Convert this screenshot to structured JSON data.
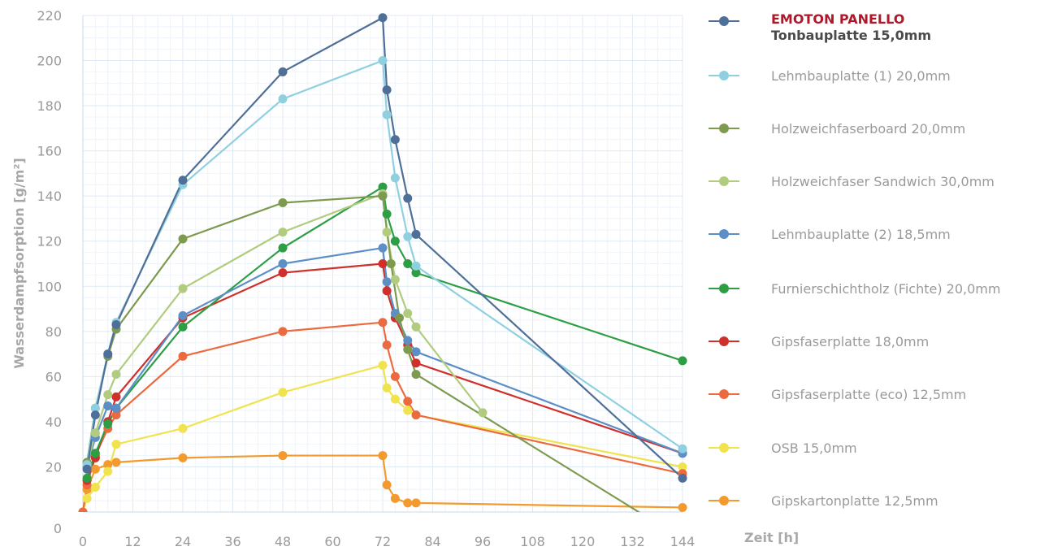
{
  "chart_data": {
    "type": "line",
    "ylabel": "Wasserdampfsorption [g/m²]",
    "xlabel": "Zeit [h]",
    "xlim": [
      0,
      144
    ],
    "ylim": [
      0,
      220
    ],
    "xticks": [
      "0",
      "12",
      "24",
      "36",
      "48",
      "60",
      "72",
      "84",
      "96",
      "108",
      "120",
      "132",
      "144"
    ],
    "yticks": [
      "0",
      "20",
      "40",
      "60",
      "80",
      "100",
      "120",
      "140",
      "160",
      "180",
      "200",
      "220"
    ],
    "grid": true,
    "legend_position": "right",
    "series": [
      {
        "name": "EMOTON PANELLO",
        "subtitle": "Tonbauplatte 15,0mm",
        "color": "#4f6f98",
        "points": [
          [
            1,
            19
          ],
          [
            3,
            43
          ],
          [
            6,
            70
          ],
          [
            8,
            83
          ],
          [
            24,
            147
          ],
          [
            48,
            195
          ],
          [
            72,
            219
          ],
          [
            73,
            187
          ],
          [
            75,
            165
          ],
          [
            78,
            139
          ],
          [
            80,
            123
          ],
          [
            144,
            15
          ]
        ]
      },
      {
        "name": "Lehmbauplatte (1) 20,0mm",
        "color": "#8fd0e0",
        "points": [
          [
            1,
            21
          ],
          [
            3,
            46
          ],
          [
            6,
            70
          ],
          [
            8,
            84
          ],
          [
            24,
            145
          ],
          [
            48,
            183
          ],
          [
            72,
            200
          ],
          [
            73,
            176
          ],
          [
            75,
            148
          ],
          [
            78,
            122
          ],
          [
            80,
            109
          ],
          [
            144,
            28
          ]
        ]
      },
      {
        "name": "Holzweichfaserboard 20,0mm",
        "color": "#7e9a4e",
        "points": [
          [
            1,
            22
          ],
          [
            3,
            46
          ],
          [
            6,
            69
          ],
          [
            8,
            81
          ],
          [
            24,
            121
          ],
          [
            48,
            137
          ],
          [
            72,
            140
          ],
          [
            74,
            110
          ],
          [
            76,
            86
          ],
          [
            78,
            72
          ],
          [
            80,
            61
          ],
          [
            144,
            -12
          ]
        ]
      },
      {
        "name": "Holzweichfaser Sandwich 30,0mm",
        "color": "#b1cc7e",
        "points": [
          [
            1,
            21
          ],
          [
            3,
            35
          ],
          [
            6,
            52
          ],
          [
            8,
            61
          ],
          [
            24,
            99
          ],
          [
            48,
            124
          ],
          [
            72,
            141
          ],
          [
            73,
            124
          ],
          [
            75,
            103
          ],
          [
            78,
            88
          ],
          [
            80,
            82
          ],
          [
            96,
            44
          ]
        ]
      },
      {
        "name": "Lehmbauplatte (2) 18,5mm",
        "color": "#5b8fc6",
        "points": [
          [
            1,
            20
          ],
          [
            3,
            33
          ],
          [
            6,
            47
          ],
          [
            8,
            46
          ],
          [
            24,
            87
          ],
          [
            48,
            110
          ],
          [
            72,
            117
          ],
          [
            73,
            102
          ],
          [
            75,
            88
          ],
          [
            78,
            76
          ],
          [
            80,
            71
          ],
          [
            144,
            26
          ]
        ]
      },
      {
        "name": "Furnierschichtholz (Fichte) 20,0mm",
        "color": "#2e9e44",
        "points": [
          [
            1,
            15
          ],
          [
            3,
            26
          ],
          [
            6,
            39
          ],
          [
            8,
            46
          ],
          [
            24,
            82
          ],
          [
            48,
            117
          ],
          [
            72,
            144
          ],
          [
            73,
            132
          ],
          [
            75,
            120
          ],
          [
            78,
            110
          ],
          [
            80,
            106
          ],
          [
            144,
            67
          ]
        ]
      },
      {
        "name": "Gipsfaserplatte 18,0mm",
        "color": "#d0302b",
        "points": [
          [
            1,
            14
          ],
          [
            3,
            24
          ],
          [
            6,
            40
          ],
          [
            8,
            51
          ],
          [
            24,
            86
          ],
          [
            48,
            106
          ],
          [
            72,
            110
          ],
          [
            73,
            98
          ],
          [
            75,
            86
          ],
          [
            78,
            74
          ],
          [
            80,
            66
          ],
          [
            144,
            26
          ]
        ]
      },
      {
        "name": "Gipsfaserplatte (eco) 12,5mm",
        "color": "#ec6a3f",
        "points": [
          [
            0,
            0
          ],
          [
            1,
            12
          ],
          [
            3,
            25
          ],
          [
            6,
            37
          ],
          [
            8,
            43
          ],
          [
            24,
            69
          ],
          [
            48,
            80
          ],
          [
            72,
            84
          ],
          [
            73,
            74
          ],
          [
            75,
            60
          ],
          [
            78,
            49
          ],
          [
            80,
            43
          ],
          [
            144,
            17
          ]
        ]
      },
      {
        "name": "OSB 15,0mm",
        "color": "#f0e34e",
        "points": [
          [
            0,
            0
          ],
          [
            1,
            6
          ],
          [
            3,
            11
          ],
          [
            6,
            18
          ],
          [
            8,
            30
          ],
          [
            24,
            37
          ],
          [
            48,
            53
          ],
          [
            72,
            65
          ],
          [
            73,
            55
          ],
          [
            75,
            50
          ],
          [
            78,
            45
          ],
          [
            80,
            43
          ],
          [
            144,
            20
          ]
        ]
      },
      {
        "name": "Gipskartonplatte 12,5mm",
        "color": "#f29a2e",
        "points": [
          [
            0,
            0
          ],
          [
            1,
            10
          ],
          [
            3,
            19
          ],
          [
            6,
            21
          ],
          [
            8,
            22
          ],
          [
            24,
            24
          ],
          [
            48,
            25
          ],
          [
            72,
            25
          ],
          [
            73,
            12
          ],
          [
            75,
            6
          ],
          [
            78,
            4
          ],
          [
            80,
            4
          ],
          [
            144,
            2
          ]
        ]
      }
    ]
  }
}
